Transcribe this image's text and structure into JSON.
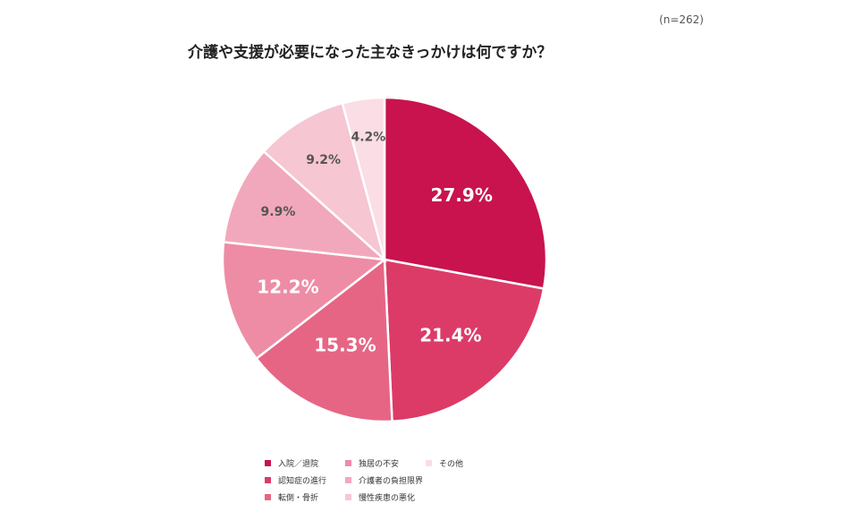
{
  "n_note": "(n=262)",
  "chart_data": {
    "type": "pie",
    "title": "介護や支援が必要になった主なきっかけは何ですか？",
    "categories": [
      "入院／退院",
      "認知症の進行",
      "転倒・骨折",
      "独居の不安",
      "介護者の負担限界",
      "慢性疾患の悪化",
      "その他"
    ],
    "values": [
      27.9,
      21.4,
      15.3,
      12.2,
      9.9,
      9.2,
      4.2
    ],
    "labels": [
      "27.9%",
      "21.4%",
      "15.3%",
      "12.2%",
      "9.9%",
      "9.2%",
      "4.2%"
    ],
    "colors": [
      "#C8134E",
      "#DC3B67",
      "#E66585",
      "#EE8CA5",
      "#F2A8BC",
      "#F6C6D3",
      "#FADDE5"
    ],
    "label_colors": [
      "#ffffff",
      "#ffffff",
      "#ffffff",
      "#ffffff",
      "#555555",
      "#555555",
      "#555555"
    ],
    "legend_position": "bottom"
  }
}
